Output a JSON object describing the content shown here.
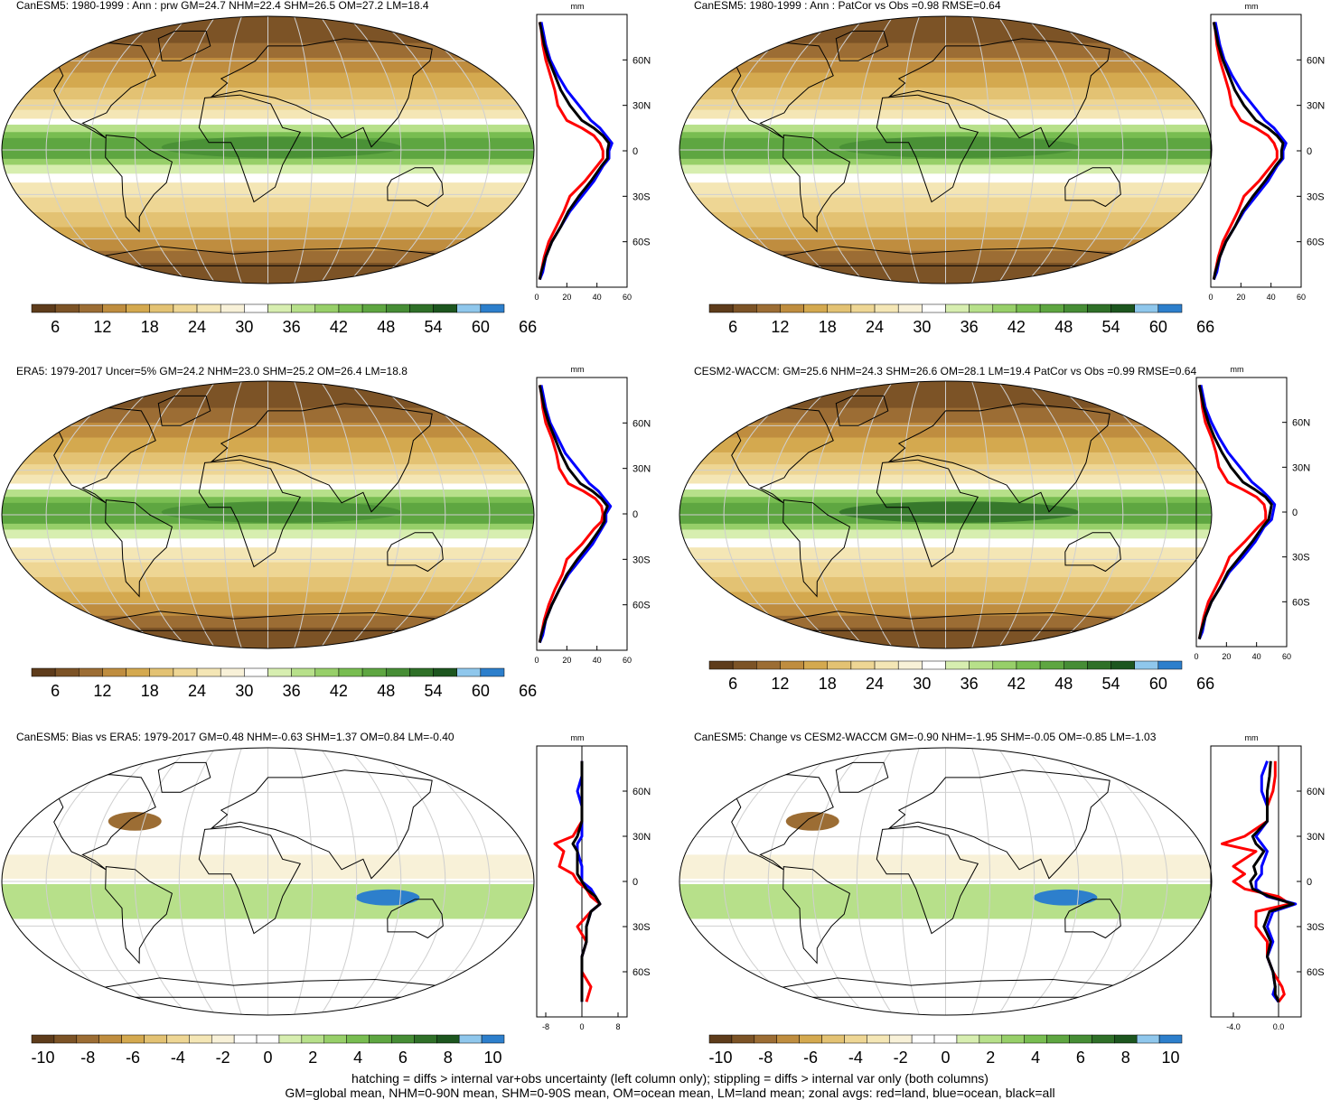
{
  "colors": {
    "abs_scale": [
      "#5e3c1b",
      "#7c5326",
      "#9c6d34",
      "#bf8d3f",
      "#d4a94f",
      "#e3c273",
      "#eed694",
      "#f4e6b5",
      "#f8f1d8",
      "#ffffff",
      "#d7eeb0",
      "#b7e08a",
      "#97cf69",
      "#78bd51",
      "#5ea641",
      "#468d35",
      "#2f7028",
      "#1d561f",
      "#8fc7ec",
      "#2d7fcc"
    ],
    "diff_scale": [
      "#5e3c1b",
      "#7c5326",
      "#9c6d34",
      "#bf8d3f",
      "#d4a94f",
      "#e3c273",
      "#eed694",
      "#f4e6b5",
      "#f8f1d8",
      "#ffffff",
      "#ffffff",
      "#d7eeb0",
      "#b7e08a",
      "#97cf69",
      "#78bd51",
      "#5ea641",
      "#468d35",
      "#2f7028",
      "#1d561f",
      "#8fc7ec",
      "#2d7fcc"
    ],
    "land": "#ff0000",
    "ocean": "#0000ff",
    "all": "#000000"
  },
  "panels": [
    {
      "title": "CanESM5: 1980-1999 : Ann : prw GM=24.7 NHM=22.4 SHM=26.5 OM=27.2 LM=18.4",
      "kind": "abs",
      "colorbar_labels": [
        "6",
        "12",
        "18",
        "24",
        "30",
        "36",
        "42",
        "48",
        "54",
        "60",
        "66"
      ],
      "zonal_unit": "mm",
      "zonal_lat_ticks": [
        "60N",
        "30N",
        "0",
        "30S",
        "60S"
      ],
      "zonal_x_ticks": [
        "0",
        "20",
        "40",
        "60"
      ],
      "chart_data": {
        "type": "line",
        "x": [
          -85,
          -80,
          -70,
          -60,
          -50,
          -40,
          -30,
          -20,
          -10,
          -5,
          0,
          5,
          10,
          15,
          20,
          30,
          40,
          50,
          60,
          70,
          80,
          85
        ],
        "xlabel": "",
        "ylabel": "mm",
        "xlim": [
          -90,
          90
        ],
        "ylim": [
          0,
          60
        ],
        "series": [
          {
            "name": "land",
            "values": [
              2,
              3,
              5,
              8,
              13,
              18,
              22,
              32,
              40,
              44,
              44,
              42,
              38,
              30,
              20,
              14,
              12,
              9,
              6,
              4,
              3,
              2
            ]
          },
          {
            "name": "ocean",
            "values": [
              2,
              4,
              6,
              10,
              16,
              22,
              30,
              38,
              44,
              48,
              48,
              50,
              46,
              42,
              36,
              28,
              20,
              14,
              9,
              6,
              4,
              3
            ]
          },
          {
            "name": "all",
            "values": [
              2,
              3,
              6,
              10,
              16,
              21,
              28,
              36,
              43,
              47,
              47,
              48,
              44,
              38,
              30,
              22,
              16,
              12,
              8,
              5,
              3,
              2
            ]
          }
        ]
      }
    },
    {
      "title": "CanESM5: 1980-1999 : Ann : PatCor vs Obs =0.98 RMSE=0.64",
      "kind": "abs",
      "colorbar_labels": [
        "6",
        "12",
        "18",
        "24",
        "30",
        "36",
        "42",
        "48",
        "54",
        "60",
        "66"
      ],
      "zonal_unit": "mm",
      "zonal_lat_ticks": [
        "60N",
        "30N",
        "0",
        "30S",
        "60S"
      ],
      "zonal_x_ticks": [
        "0",
        "20",
        "40",
        "60"
      ],
      "chart_data": {
        "type": "line",
        "x": [
          -85,
          -80,
          -70,
          -60,
          -50,
          -40,
          -30,
          -20,
          -10,
          -5,
          0,
          5,
          10,
          15,
          20,
          30,
          40,
          50,
          60,
          70,
          80,
          85
        ],
        "xlabel": "",
        "ylabel": "mm",
        "xlim": [
          -90,
          90
        ],
        "ylim": [
          0,
          60
        ],
        "series": [
          {
            "name": "land",
            "values": [
              2,
              3,
              5,
              8,
              13,
              18,
              22,
              32,
              40,
              44,
              44,
              42,
              38,
              30,
              20,
              14,
              12,
              9,
              6,
              4,
              3,
              2
            ]
          },
          {
            "name": "ocean",
            "values": [
              2,
              4,
              6,
              10,
              16,
              22,
              30,
              38,
              44,
              48,
              48,
              50,
              46,
              42,
              36,
              28,
              20,
              14,
              9,
              6,
              4,
              3
            ]
          },
          {
            "name": "all",
            "values": [
              2,
              3,
              6,
              10,
              16,
              21,
              28,
              36,
              43,
              47,
              47,
              48,
              44,
              38,
              30,
              22,
              16,
              12,
              8,
              5,
              3,
              2
            ]
          }
        ]
      }
    },
    {
      "title": "ERA5: 1979-2017 Uncer=5% GM=24.2 NHM=23.0 SHM=25.2 OM=26.4 LM=18.8",
      "kind": "abs",
      "colorbar_labels": [
        "6",
        "12",
        "18",
        "24",
        "30",
        "36",
        "42",
        "48",
        "54",
        "60",
        "66"
      ],
      "zonal_unit": "mm",
      "zonal_lat_ticks": [
        "60N",
        "30N",
        "0",
        "30S",
        "60S"
      ],
      "zonal_x_ticks": [
        "0",
        "20",
        "40",
        "60"
      ],
      "chart_data": {
        "type": "line",
        "x": [
          -85,
          -80,
          -70,
          -60,
          -50,
          -40,
          -30,
          -20,
          -10,
          -5,
          0,
          5,
          10,
          15,
          20,
          30,
          40,
          50,
          60,
          70,
          80,
          85
        ],
        "xlabel": "",
        "ylabel": "mm",
        "xlim": [
          -90,
          90
        ],
        "ylim": [
          0,
          60
        ],
        "series": [
          {
            "name": "land",
            "values": [
              2,
              3,
              5,
              8,
              12,
              17,
              20,
              30,
              38,
              43,
              44,
              43,
              39,
              31,
              21,
              15,
              13,
              10,
              6,
              4,
              3,
              2
            ]
          },
          {
            "name": "ocean",
            "values": [
              2,
              4,
              6,
              10,
              15,
              21,
              29,
              37,
              43,
              46,
              46,
              49,
              45,
              41,
              35,
              27,
              19,
              14,
              9,
              6,
              4,
              3
            ]
          },
          {
            "name": "all",
            "values": [
              2,
              3,
              6,
              10,
              15,
              20,
              27,
              35,
              42,
              45,
              45,
              47,
              43,
              37,
              29,
              21,
              16,
              12,
              8,
              5,
              3,
              2
            ]
          }
        ]
      }
    },
    {
      "title": "CESM2-WACCM: GM=25.6 NHM=24.3 SHM=26.6 OM=28.1 LM=19.4 PatCor vs Obs =0.99 RMSE=0.64",
      "kind": "abs",
      "colorbar_labels": [
        "6",
        "12",
        "18",
        "24",
        "30",
        "36",
        "42",
        "48",
        "54",
        "60",
        "66"
      ],
      "zonal_unit": "mm",
      "zonal_lat_ticks": [
        "60N",
        "30N",
        "0",
        "30S",
        "60S"
      ],
      "zonal_x_ticks": [
        "0",
        "20",
        "40",
        "60"
      ],
      "chart_data": {
        "type": "line",
        "x": [
          -85,
          -80,
          -70,
          -60,
          -50,
          -40,
          -30,
          -20,
          -10,
          -5,
          0,
          5,
          10,
          15,
          20,
          30,
          40,
          50,
          60,
          70,
          80,
          85
        ],
        "xlabel": "",
        "ylabel": "mm",
        "xlim": [
          -90,
          90
        ],
        "ylim": [
          0,
          60
        ],
        "series": [
          {
            "name": "land",
            "values": [
              2,
              3,
              5,
              8,
              13,
              18,
              22,
              32,
              41,
              46,
              46,
              45,
              40,
              31,
              21,
              15,
              13,
              10,
              6,
              4,
              3,
              2
            ]
          },
          {
            "name": "ocean",
            "values": [
              2,
              4,
              6,
              10,
              16,
              22,
              31,
              39,
              45,
              50,
              51,
              52,
              48,
              43,
              37,
              29,
              21,
              15,
              10,
              6,
              4,
              3
            ]
          },
          {
            "name": "all",
            "values": [
              2,
              3,
              6,
              10,
              16,
              21,
              29,
              37,
              44,
              48,
              49,
              50,
              46,
              39,
              31,
              23,
              17,
              12,
              8,
              5,
              3,
              2
            ]
          }
        ]
      }
    },
    {
      "title": "CanESM5: Bias vs ERA5: 1979-2017 GM=0.48 NHM=-0.63 SHM=1.37 OM=0.84 LM=-0.40",
      "kind": "diff",
      "colorbar_labels": [
        "-10",
        "-8",
        "-6",
        "-4",
        "-2",
        "0",
        "2",
        "4",
        "6",
        "8",
        "10"
      ],
      "zonal_unit": "mm",
      "zonal_lat_ticks": [
        "60N",
        "30N",
        "0",
        "30S",
        "60S"
      ],
      "zonal_x_ticks": [
        "-8",
        "0",
        "8"
      ],
      "chart_data": {
        "type": "line",
        "x": [
          -80,
          -70,
          -60,
          -50,
          -40,
          -30,
          -20,
          -15,
          -10,
          -5,
          0,
          5,
          10,
          20,
          25,
          30,
          40,
          50,
          60,
          70,
          80
        ],
        "xlabel": "",
        "ylabel": "mm",
        "xlim": [
          -90,
          90
        ],
        "ylim": [
          -10,
          10
        ],
        "series": [
          {
            "name": "land",
            "values": [
              1,
              2,
              0,
              0,
              1,
              -1,
              2,
              4,
              2,
              1,
              -1,
              -2,
              -5,
              -4,
              -6,
              -2,
              0,
              0,
              0,
              0,
              0
            ]
          },
          {
            "name": "ocean",
            "values": [
              0,
              0,
              0,
              0,
              1,
              1,
              2,
              4,
              3,
              2,
              0,
              0,
              0,
              -1,
              -1,
              0,
              0,
              0,
              -1,
              0,
              0
            ]
          },
          {
            "name": "all",
            "values": [
              0,
              0,
              0,
              0,
              1,
              1,
              2,
              4,
              3,
              1,
              0,
              -1,
              -1,
              -1,
              -2,
              -1,
              0,
              0,
              0,
              0,
              0
            ]
          }
        ]
      }
    },
    {
      "title": "CanESM5: Change vs CESM2-WACCM GM=-0.90 NHM=-1.95 SHM=-0.05 OM=-0.85 LM=-1.03",
      "kind": "diff",
      "colorbar_labels": [
        "-10",
        "-8",
        "-6",
        "-4",
        "-2",
        "0",
        "2",
        "4",
        "6",
        "8",
        "10"
      ],
      "zonal_unit": "mm",
      "zonal_lat_ticks": [
        "60N",
        "30N",
        "0",
        "30S",
        "60S"
      ],
      "zonal_x_ticks": [
        "-4.0",
        "0.0"
      ],
      "chart_data": {
        "type": "line",
        "x": [
          -80,
          -75,
          -70,
          -60,
          -50,
          -40,
          -30,
          -20,
          -15,
          -10,
          -5,
          0,
          5,
          10,
          20,
          25,
          30,
          40,
          50,
          60,
          70,
          80
        ],
        "xlabel": "",
        "ylabel": "mm",
        "xlim": [
          -90,
          90
        ],
        "ylim": [
          -6,
          2
        ],
        "series": [
          {
            "name": "land",
            "values": [
              0,
              0.5,
              0.3,
              -0.5,
              -1,
              -1,
              -2,
              -2,
              1,
              0,
              -3,
              -4,
              -3,
              -4,
              -2,
              -5,
              -3,
              -1,
              -1,
              -0.5,
              -0.3,
              -0.3
            ]
          },
          {
            "name": "ocean",
            "values": [
              0,
              -0.5,
              -0.3,
              -0.5,
              -1,
              -0.5,
              -1,
              -0.5,
              1.5,
              -1,
              -2,
              -2,
              -1.5,
              -1.5,
              -1,
              -1.5,
              -2,
              -1,
              -1,
              -1.5,
              -1.5,
              -1
            ]
          },
          {
            "name": "all",
            "values": [
              0,
              -0.3,
              -0.3,
              -0.5,
              -1,
              -0.7,
              -1.3,
              -0.8,
              1.3,
              -0.8,
              -2.3,
              -2.5,
              -2,
              -2.2,
              -1.3,
              -2,
              -2.3,
              -1,
              -1,
              -1,
              -0.8,
              -0.7
            ]
          }
        ]
      }
    }
  ],
  "footer": {
    "line1": "hatching = diffs > internal var+obs uncertainty (left column only); stippling = diffs > internal var only (both columns)",
    "line2": "GM=global mean, NHM=0-90N mean, SHM=0-90S mean, OM=ocean mean, LM=land mean; zonal avgs: red=land, blue=ocean, black=all"
  }
}
